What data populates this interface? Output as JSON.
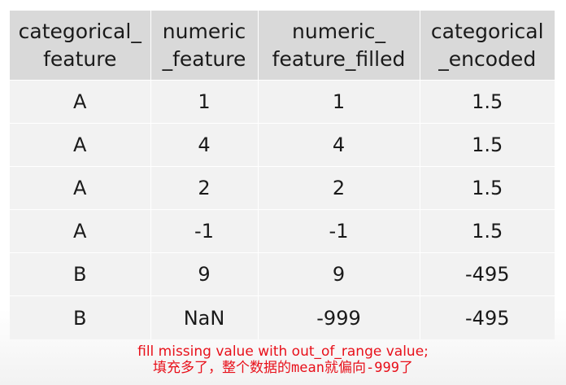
{
  "table": {
    "headers": [
      [
        "categorical_",
        "feature"
      ],
      [
        "numeric",
        "_feature"
      ],
      [
        "numeric_",
        "feature_filled"
      ],
      [
        "categorical",
        "_encoded"
      ]
    ],
    "rows": [
      [
        "A",
        "1",
        "1",
        "1.5"
      ],
      [
        "A",
        "4",
        "4",
        "1.5"
      ],
      [
        "A",
        "2",
        "2",
        "1.5"
      ],
      [
        "A",
        "-1",
        "-1",
        "1.5"
      ],
      [
        "B",
        "9",
        "9",
        "-495"
      ],
      [
        "B",
        "NaN",
        "-999",
        "-495"
      ]
    ]
  },
  "note": {
    "line1": "fill missing value with out_of_range value;",
    "line2": "填充多了，整个数据的mean就偏向-999了"
  },
  "colors": {
    "header_bg": "#d9d9d9",
    "body_bg": "#f2f2f2",
    "note_text": "#e8101a"
  }
}
